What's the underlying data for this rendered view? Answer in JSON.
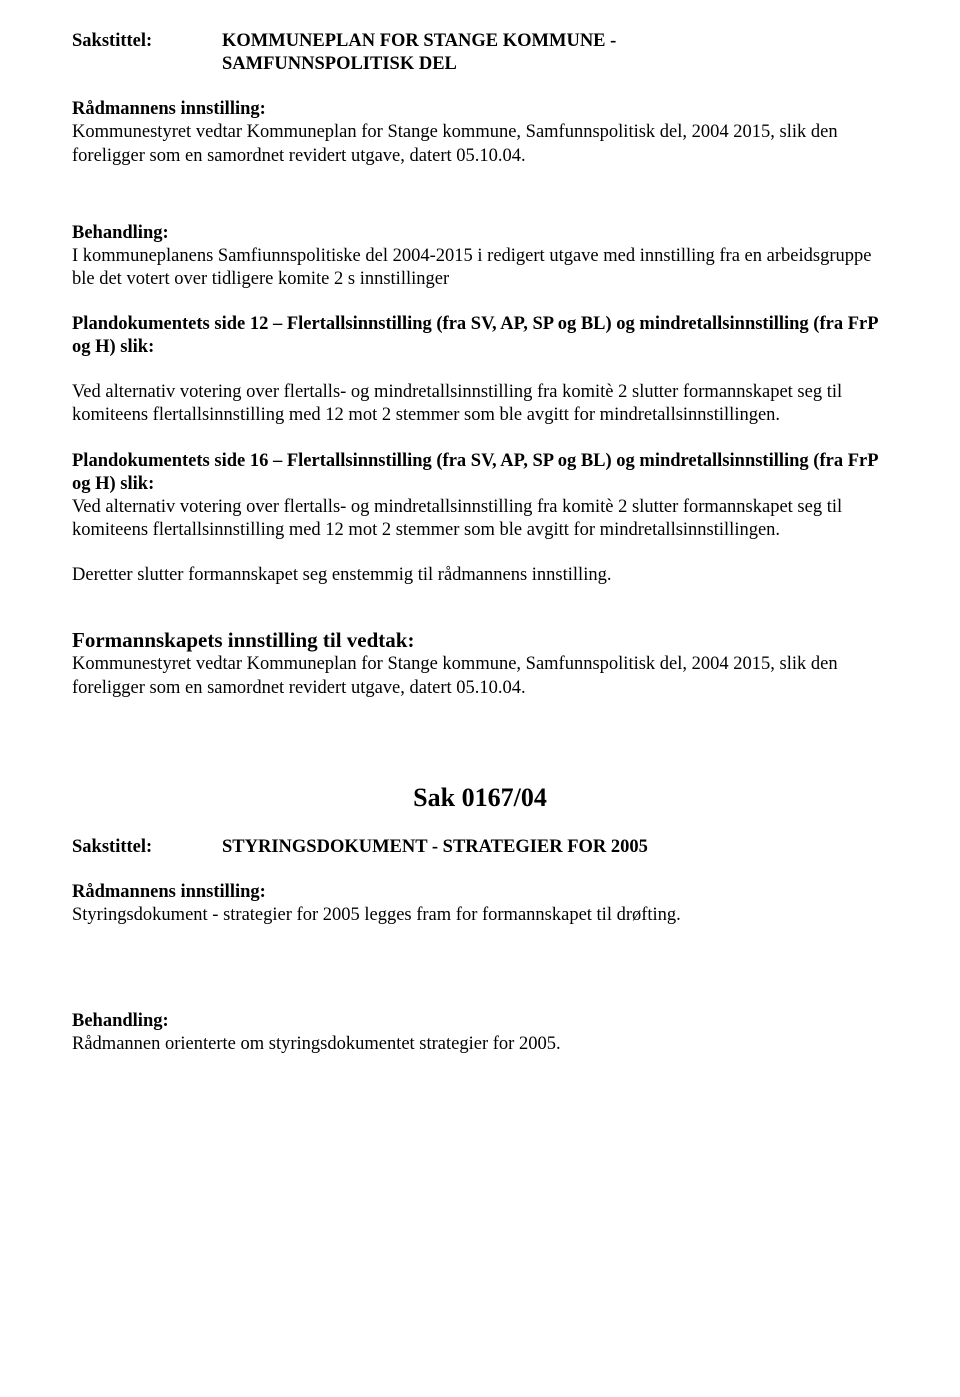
{
  "section1": {
    "label": "Sakstittel:",
    "title_line1": "KOMMUNEPLAN FOR STANGE KOMMUNE -",
    "title_line2": "SAMFUNNSPOLITISK DEL",
    "radmann_heading": "Rådmannens innstilling:",
    "radmann_body": "Kommunestyret vedtar Kommuneplan for Stange kommune, Samfunnspolitisk del, 2004 2015, slik den foreligger som en samordnet revidert utgave, datert 05.10.04.",
    "behandling_heading": "Behandling:",
    "behandling_body": "I kommuneplanens Samfiunnspolitiske del 2004-2015 i redigert utgave med innstilling fra en arbeidsgruppe ble det votert over tidligere komite 2 s innstillinger",
    "plan12_bold": "Plandokumentets side 12 – Flertallsinnstilling (fra SV, AP, SP og BL) og mindretallsinnstilling (fra FrP og H) slik:",
    "plan12_body": "Ved alternativ votering over flertalls- og mindretallsinnstilling fra komitè 2 slutter formannskapet seg til komiteens flertallsinnstilling med 12 mot 2 stemmer som ble avgitt for mindretallsinnstillingen.",
    "plan16_bold": "Plandokumentets side 16 – Flertallsinnstilling (fra SV, AP, SP og BL) og mindretallsinnstilling (fra FrP og H) slik:",
    "plan16_body": "Ved alternativ votering over flertalls- og mindretallsinnstilling fra komitè 2 slutter formannskapet seg til komiteens flertallsinnstilling med 12 mot 2 stemmer som ble avgitt for mindretallsinnstillingen.",
    "deretter": "Deretter slutter formannskapet seg enstemmig til rådmannens innstilling.",
    "vedtak_heading": "Formannskapets innstilling til vedtak:",
    "vedtak_body": "Kommunestyret vedtar Kommuneplan for Stange kommune, Samfunnspolitisk del, 2004 2015, slik den foreligger som en samordnet revidert utgave, datert 05.10.04."
  },
  "section2": {
    "sak_heading": "Sak  0167/04",
    "label": "Sakstittel:",
    "title": "STYRINGSDOKUMENT - STRATEGIER FOR 2005",
    "radmann_heading": "Rådmannens innstilling:",
    "radmann_body": "Styringsdokument  - strategier for 2005 legges fram for formannskapet til drøfting.",
    "behandling_heading": "Behandling:",
    "behandling_body": "Rådmannen orienterte om styringsdokumentet strategier for 2005."
  }
}
